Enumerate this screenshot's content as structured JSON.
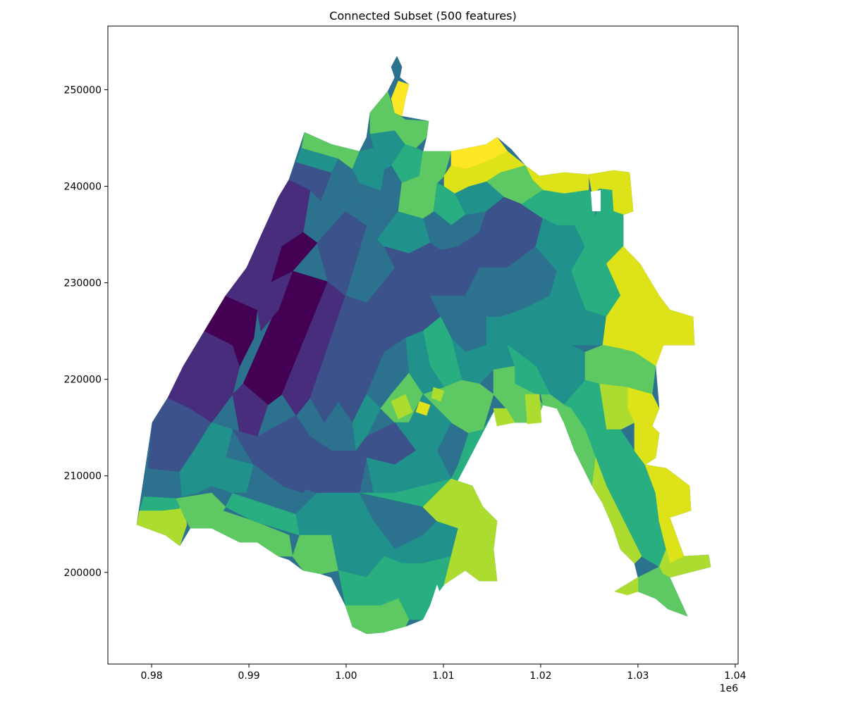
{
  "figure": {
    "title": "Connected Subset (500 features)",
    "x_offset_label": "1e6"
  },
  "chart_data": {
    "type": "choropleth-map",
    "title": "Connected Subset (500 features)",
    "xlabel": "",
    "ylabel": "",
    "xlim": [
      975500,
      1040300
    ],
    "ylim": [
      190500,
      256600
    ],
    "x_ticks": [
      {
        "value": 980000,
        "label": "0.98"
      },
      {
        "value": 990000,
        "label": "0.99"
      },
      {
        "value": 1000000,
        "label": "1.00"
      },
      {
        "value": 1010000,
        "label": "1.01"
      },
      {
        "value": 1020000,
        "label": "1.02"
      },
      {
        "value": 1030000,
        "label": "1.03"
      },
      {
        "value": 1040000,
        "label": "1.04"
      }
    ],
    "x_tick_multiplier": "1e6",
    "y_ticks": [
      {
        "value": 200000,
        "label": "200000"
      },
      {
        "value": 210000,
        "label": "210000"
      },
      {
        "value": 220000,
        "label": "220000"
      },
      {
        "value": 230000,
        "label": "230000"
      },
      {
        "value": 240000,
        "label": "240000"
      },
      {
        "value": 250000,
        "label": "250000"
      }
    ],
    "colormap": "viridis",
    "grid": false,
    "legend": "none",
    "feature_count": 500,
    "colors": {
      "c0": "#440154",
      "c1": "#472d7b",
      "c2": "#3b528b",
      "c3": "#2c728e",
      "c4": "#21918c",
      "c5": "#28ae80",
      "c6": "#5ec962",
      "c7": "#addc30",
      "c8": "#dde318",
      "c9": "#fde725"
    }
  }
}
